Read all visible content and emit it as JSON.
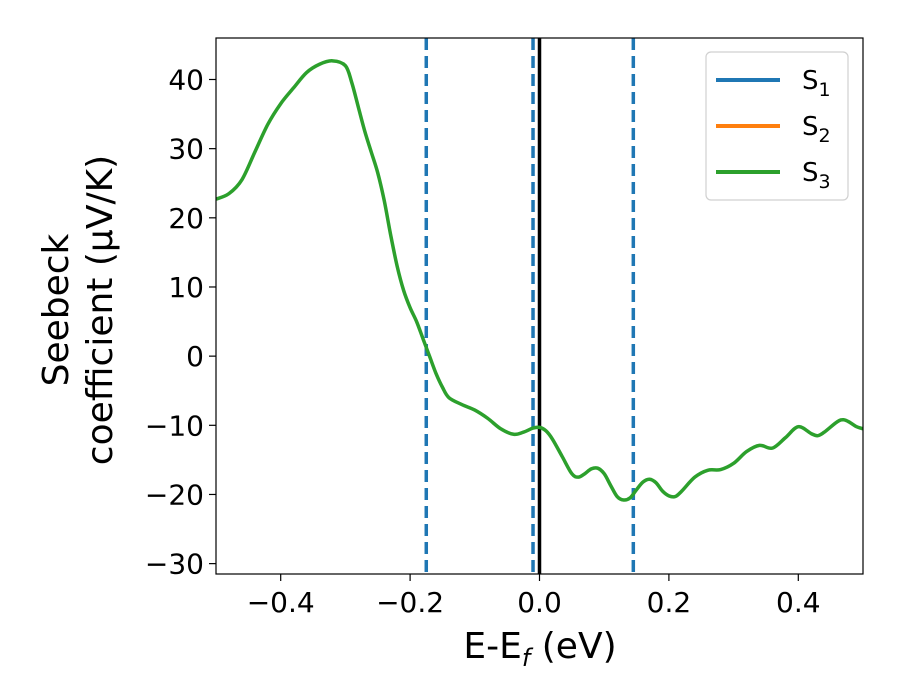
{
  "chart_data": {
    "type": "line",
    "title": "",
    "xlabel": "E-E",
    "xlabel_sub": "f",
    "xlabel_unit": " (eV)",
    "ylabel_line1": "Seebeck",
    "ylabel_line2": "coefficient  (μV/K)",
    "xlim": [
      -0.5,
      0.5
    ],
    "ylim": [
      -31.5,
      46
    ],
    "xticks": [
      -0.4,
      -0.2,
      0.0,
      0.2,
      0.4
    ],
    "xtick_labels": [
      "−0.4",
      "−0.2",
      "0.0",
      "0.2",
      "0.4"
    ],
    "yticks": [
      -30,
      -20,
      -10,
      0,
      10,
      20,
      30,
      40
    ],
    "ytick_labels": [
      "−30",
      "−20",
      "−10",
      "0",
      "10",
      "20",
      "30",
      "40"
    ],
    "grid": false,
    "legend_position": "upper-right",
    "series": [
      {
        "name": "S",
        "sub": "1",
        "color": "#1f77b4"
      },
      {
        "name": "S",
        "sub": "2",
        "color": "#ff7f0e"
      },
      {
        "name": "S",
        "sub": "3",
        "color": "#2ca02c"
      }
    ],
    "curve": {
      "color": "#2ca02c",
      "points": [
        [
          -0.5,
          22.7
        ],
        [
          -0.48,
          23.5
        ],
        [
          -0.46,
          25.5
        ],
        [
          -0.44,
          29.5
        ],
        [
          -0.42,
          33.5
        ],
        [
          -0.4,
          36.5
        ],
        [
          -0.38,
          38.8
        ],
        [
          -0.36,
          41.0
        ],
        [
          -0.34,
          42.2
        ],
        [
          -0.32,
          42.7
        ],
        [
          -0.3,
          42.0
        ],
        [
          -0.29,
          39.5
        ],
        [
          -0.28,
          36.0
        ],
        [
          -0.27,
          32.5
        ],
        [
          -0.26,
          29.5
        ],
        [
          -0.25,
          26.5
        ],
        [
          -0.24,
          22.5
        ],
        [
          -0.23,
          17.5
        ],
        [
          -0.22,
          13.0
        ],
        [
          -0.21,
          9.5
        ],
        [
          -0.2,
          7.0
        ],
        [
          -0.19,
          5.0
        ],
        [
          -0.18,
          2.5
        ],
        [
          -0.17,
          0.0
        ],
        [
          -0.16,
          -2.5
        ],
        [
          -0.15,
          -4.5
        ],
        [
          -0.14,
          -6.0
        ],
        [
          -0.12,
          -7.0
        ],
        [
          -0.1,
          -7.8
        ],
        [
          -0.08,
          -9.0
        ],
        [
          -0.06,
          -10.5
        ],
        [
          -0.04,
          -11.3
        ],
        [
          -0.025,
          -11.0
        ],
        [
          -0.01,
          -10.4
        ],
        [
          0.0,
          -10.3
        ],
        [
          0.01,
          -10.8
        ],
        [
          0.02,
          -12.0
        ],
        [
          0.035,
          -14.5
        ],
        [
          0.05,
          -17.0
        ],
        [
          0.06,
          -17.5
        ],
        [
          0.07,
          -17.0
        ],
        [
          0.08,
          -16.3
        ],
        [
          0.09,
          -16.2
        ],
        [
          0.1,
          -17.0
        ],
        [
          0.11,
          -18.7
        ],
        [
          0.12,
          -20.3
        ],
        [
          0.13,
          -20.8
        ],
        [
          0.14,
          -20.5
        ],
        [
          0.15,
          -19.3
        ],
        [
          0.16,
          -18.2
        ],
        [
          0.17,
          -17.8
        ],
        [
          0.18,
          -18.3
        ],
        [
          0.19,
          -19.5
        ],
        [
          0.2,
          -20.2
        ],
        [
          0.21,
          -20.3
        ],
        [
          0.22,
          -19.5
        ],
        [
          0.24,
          -17.5
        ],
        [
          0.26,
          -16.5
        ],
        [
          0.28,
          -16.4
        ],
        [
          0.3,
          -15.5
        ],
        [
          0.32,
          -13.8
        ],
        [
          0.34,
          -12.9
        ],
        [
          0.36,
          -13.3
        ],
        [
          0.38,
          -11.8
        ],
        [
          0.4,
          -10.2
        ],
        [
          0.42,
          -11.2
        ],
        [
          0.43,
          -11.5
        ],
        [
          0.44,
          -11.0
        ],
        [
          0.46,
          -9.5
        ],
        [
          0.47,
          -9.2
        ],
        [
          0.48,
          -9.6
        ],
        [
          0.49,
          -10.2
        ],
        [
          0.5,
          -10.5
        ]
      ]
    },
    "vlines": [
      {
        "x": -0.175,
        "style": "dashed",
        "color": "#1f77b4"
      },
      {
        "x": -0.01,
        "style": "dashed",
        "color": "#1f77b4"
      },
      {
        "x": 0.0,
        "style": "solid",
        "color": "#000000"
      },
      {
        "x": 0.145,
        "style": "dashed",
        "color": "#1f77b4"
      }
    ]
  }
}
